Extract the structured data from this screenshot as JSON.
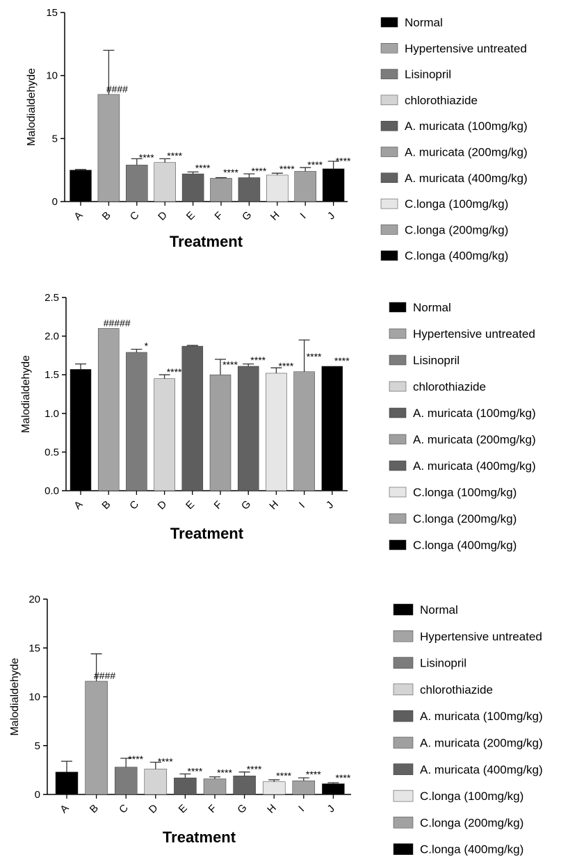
{
  "chart_data": [
    {
      "type": "bar",
      "categories": [
        "A",
        "B",
        "C",
        "D",
        "E",
        "F",
        "G",
        "H",
        "I",
        "J"
      ],
      "values": [
        2.5,
        8.5,
        2.9,
        3.1,
        2.2,
        1.85,
        1.9,
        2.1,
        2.4,
        2.6
      ],
      "errors": [
        0.05,
        3.5,
        0.5,
        0.3,
        0.15,
        0.05,
        0.3,
        0.15,
        0.3,
        0.6
      ],
      "annotations": [
        "",
        "####",
        "****",
        "****",
        "****",
        "****",
        "****",
        "****",
        "****",
        "****"
      ],
      "colors": [
        "#000000",
        "#a4a4a4",
        "#7c7c7c",
        "#d4d4d4",
        "#5e5e5e",
        "#a0a0a0",
        "#626262",
        "#e6e6e6",
        "#a2a2a2",
        "#000000"
      ],
      "xlabel": "Treatment",
      "ylabel": "Malodialdehyde",
      "ylim": [
        0,
        15
      ],
      "yticks": [
        "0",
        "5",
        "10",
        "15"
      ],
      "legend": [
        "Normal",
        "Hypertensive untreated",
        "Lisinopril",
        "chlorothiazide",
        "A. muricata (100mg/kg)",
        "A. muricata (200mg/kg)",
        "A. muricata (400mg/kg)",
        "C.longa (100mg/kg)",
        "C.longa (200mg/kg)",
        "C.longa (400mg/kg)"
      ],
      "legend_position": "right"
    },
    {
      "type": "bar",
      "categories": [
        "A",
        "B",
        "C",
        "D",
        "E",
        "F",
        "G",
        "H",
        "I",
        "J"
      ],
      "values": [
        1.57,
        2.1,
        1.79,
        1.45,
        1.87,
        1.5,
        1.61,
        1.52,
        1.54,
        1.61
      ],
      "errors": [
        0.07,
        0.0,
        0.04,
        0.05,
        0.01,
        0.2,
        0.03,
        0.07,
        0.41,
        0.0
      ],
      "annotations": [
        "",
        "#####",
        "*",
        "****",
        "",
        "****",
        "****",
        "****",
        "****",
        "****"
      ],
      "colors": [
        "#000000",
        "#a4a4a4",
        "#7c7c7c",
        "#d4d4d4",
        "#5e5e5e",
        "#a0a0a0",
        "#626262",
        "#e6e6e6",
        "#a2a2a2",
        "#000000"
      ],
      "xlabel": "Treatment",
      "ylabel": "Malodialdehyde",
      "ylim": [
        0,
        2.5
      ],
      "yticks": [
        "0.0",
        "0.5",
        "1.0",
        "1.5",
        "2.0",
        "2.5"
      ],
      "legend": [
        "Normal",
        "Hypertensive untreated",
        "Lisinopril",
        "chlorothiazide",
        "A. muricata (100mg/kg)",
        "A. muricata (200mg/kg)",
        "A. muricata (400mg/kg)",
        "C.longa (100mg/kg)",
        "C.longa (200mg/kg)",
        "C.longa (400mg/kg)"
      ],
      "legend_position": "right"
    },
    {
      "type": "bar",
      "categories": [
        "A",
        "B",
        "C",
        "D",
        "E",
        "F",
        "G",
        "H",
        "I",
        "J"
      ],
      "values": [
        2.3,
        11.6,
        2.8,
        2.6,
        1.7,
        1.6,
        1.9,
        1.3,
        1.4,
        1.1
      ],
      "errors": [
        1.1,
        2.8,
        0.9,
        0.7,
        0.4,
        0.2,
        0.4,
        0.2,
        0.3,
        0.1
      ],
      "annotations": [
        "",
        "####",
        "****",
        "****",
        "****",
        "****",
        "****",
        "****",
        "****",
        "****"
      ],
      "colors": [
        "#000000",
        "#a4a4a4",
        "#7c7c7c",
        "#d4d4d4",
        "#5e5e5e",
        "#a0a0a0",
        "#626262",
        "#e6e6e6",
        "#a2a2a2",
        "#000000"
      ],
      "xlabel": "Treatment",
      "ylabel": "Malodialdehyde",
      "ylim": [
        0,
        20
      ],
      "yticks": [
        "0",
        "5",
        "10",
        "15",
        "20"
      ],
      "legend": [
        "Normal",
        "Hypertensive untreated",
        "Lisinopril",
        "chlorothiazide",
        "A. muricata (100mg/kg)",
        "A. muricata (200mg/kg)",
        "A. muricata (400mg/kg)",
        "C.longa (100mg/kg)",
        "C.longa (200mg/kg)",
        "C.longa (400mg/kg)"
      ],
      "legend_position": "right"
    }
  ]
}
